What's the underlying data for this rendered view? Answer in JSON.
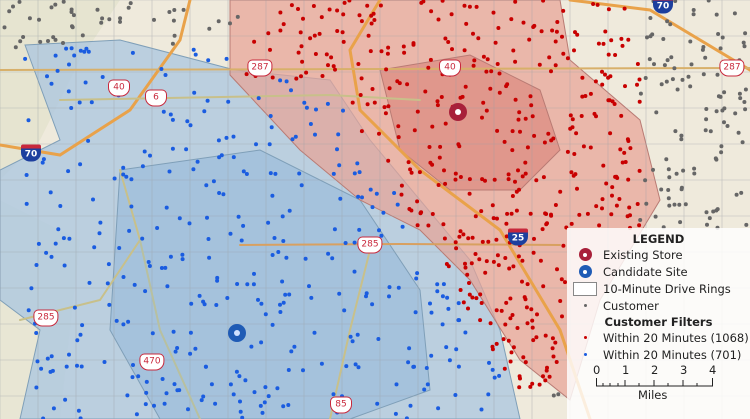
{
  "colors": {
    "base": "#efeadc",
    "blue_zone": "#a9c6e0",
    "red_zone": "#e8a397",
    "existing_store": "#a8203a",
    "candidate_site": "#1f5bb5",
    "customer": "#666666",
    "red_customer": "#c80000",
    "blue_customer": "#1a5ce0",
    "road": "#e9a24a"
  },
  "shields": [
    {
      "type": "interstate",
      "label": "70"
    },
    {
      "type": "interstate",
      "label": "70"
    },
    {
      "type": "interstate",
      "label": "25"
    },
    {
      "type": "us",
      "label": "287"
    },
    {
      "type": "us",
      "label": "287"
    },
    {
      "type": "us",
      "label": "40"
    },
    {
      "type": "us",
      "label": "40"
    },
    {
      "type": "us",
      "label": "6"
    },
    {
      "type": "us",
      "label": "285"
    },
    {
      "type": "us",
      "label": "285"
    },
    {
      "type": "us",
      "label": "470"
    },
    {
      "type": "us",
      "label": "85"
    }
  ],
  "legend": {
    "title": "LEGEND",
    "existing_store": "Existing Store",
    "candidate_site": "Candidate Site",
    "drive_rings": "10-Minute Drive Rings",
    "customer": "Customer",
    "filters_title": "Customer Filters",
    "filter_red": "Within 20 Minutes (1068)",
    "filter_blue": "Within 20 Minutes (701)",
    "scale_ticks": [
      "0",
      "1",
      "2",
      "3",
      "4"
    ],
    "scale_unit": "Miles"
  }
}
